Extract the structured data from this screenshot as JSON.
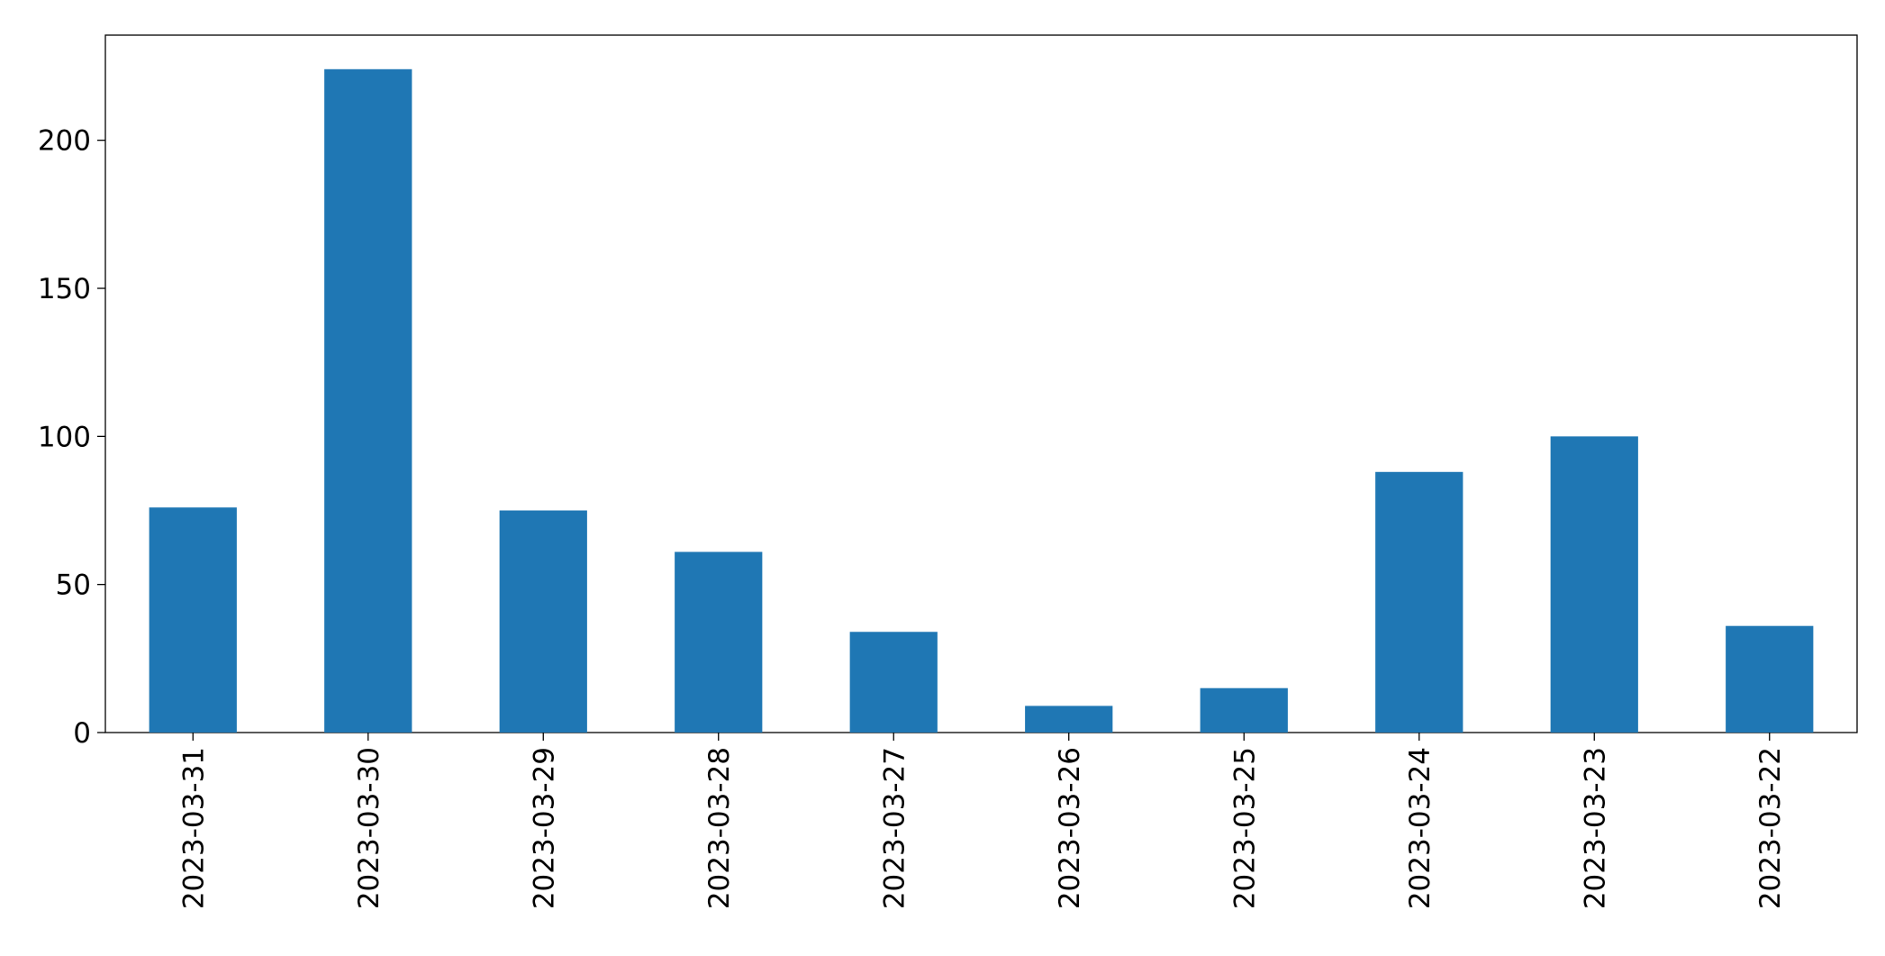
{
  "chart_data": {
    "type": "bar",
    "categories": [
      "2023-03-31",
      "2023-03-30",
      "2023-03-29",
      "2023-03-28",
      "2023-03-27",
      "2023-03-26",
      "2023-03-25",
      "2023-03-24",
      "2023-03-23",
      "2023-03-22"
    ],
    "values": [
      76,
      224,
      75,
      61,
      34,
      9,
      15,
      88,
      100,
      36
    ],
    "color": "#1f77b4",
    "ylim": [
      0,
      235.5
    ],
    "yticks": [
      0,
      50,
      100,
      150,
      200
    ],
    "grid": false
  }
}
